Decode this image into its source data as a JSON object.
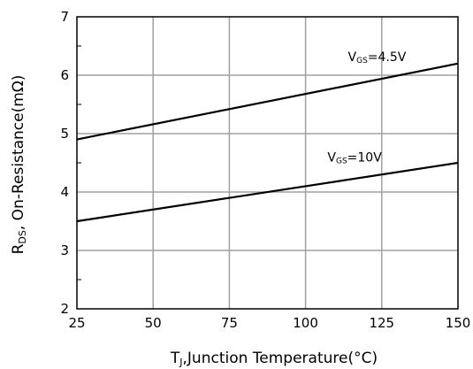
{
  "chart_data": {
    "type": "line",
    "xlabel": {
      "prefix": "T",
      "subscript": "J",
      "rest": ",Junction Temperature(°C)"
    },
    "ylabel": {
      "prefix": "R",
      "subscript": "DS",
      "rest": ", On-Resistance(mΩ)"
    },
    "xlim": [
      25,
      150
    ],
    "ylim": [
      2,
      7
    ],
    "x_ticks": [
      25,
      50,
      75,
      100,
      125,
      150
    ],
    "y_ticks": [
      2,
      3,
      4,
      5,
      6,
      7
    ],
    "grid": true,
    "series": [
      {
        "name": {
          "prefix": "V",
          "subscript": "GS",
          "rest": "=4.5V"
        },
        "x": [
          25,
          150
        ],
        "y": [
          4.9,
          6.2
        ],
        "label_at": [
          133,
          6.15
        ]
      },
      {
        "name": {
          "prefix": "V",
          "subscript": "GS",
          "rest": "=10V"
        },
        "x": [
          25,
          150
        ],
        "y": [
          3.5,
          4.5
        ],
        "label_at": [
          125,
          4.43
        ]
      }
    ]
  }
}
